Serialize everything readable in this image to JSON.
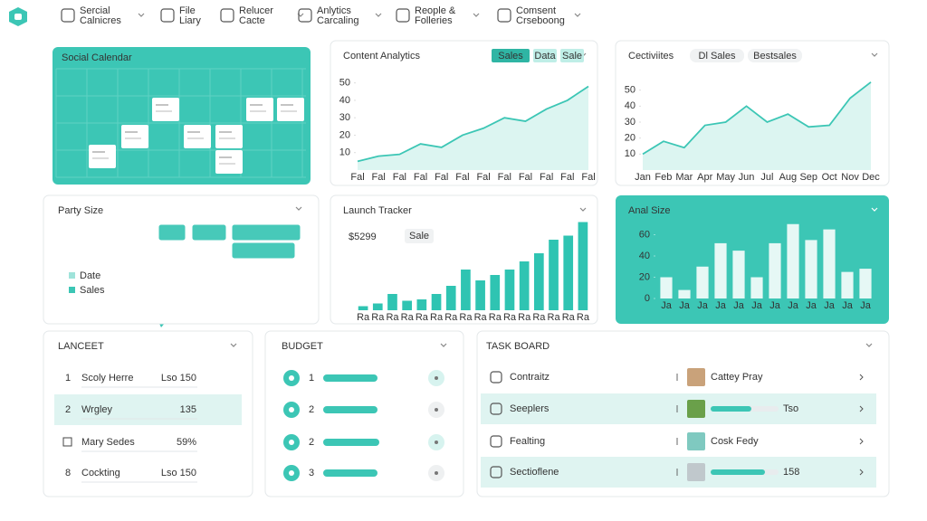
{
  "nav": {
    "items": [
      [
        "Sercial",
        "Calnicres"
      ],
      [
        "File",
        "Liary"
      ],
      [
        "Relucer",
        "Cacte"
      ],
      [
        "Anlytics",
        "Carcaling"
      ],
      [
        "Reople &",
        "Folleries"
      ],
      [
        "Comsent",
        "Crseboong"
      ]
    ]
  },
  "calendar": {
    "title": "Social Calendar"
  },
  "map": {
    "title": "Party Size",
    "legend": [
      "Date",
      "Sales"
    ]
  },
  "chart_data": [
    {
      "type": "area",
      "title": "Content Analytics",
      "buttons": [
        "Sales",
        "Data",
        "Sale"
      ],
      "color": "#3cc6b5",
      "categories": [
        "Fal",
        "Fal",
        "Fal",
        "Fal",
        "Fal",
        "Fal",
        "Fal",
        "Fal",
        "Fal",
        "Fal",
        "Fal",
        "Fal"
      ],
      "values": [
        5,
        8,
        9,
        15,
        13,
        20,
        24,
        30,
        28,
        35,
        40,
        48
      ],
      "ylim": [
        0,
        55
      ],
      "yticks": [
        10,
        20,
        30,
        40,
        50
      ]
    },
    {
      "type": "area",
      "title": "Cectiviites",
      "buttons": [
        "Dl Sales",
        "Bestsales"
      ],
      "color": "#3cc6b5",
      "categories": [
        "Jan",
        "Feb",
        "Mar",
        "Apr",
        "May",
        "Jun",
        "Jul",
        "Aug",
        "Sep",
        "Oct",
        "Nov",
        "Dec"
      ],
      "values": [
        10,
        18,
        14,
        28,
        30,
        40,
        30,
        35,
        27,
        28,
        45,
        55
      ],
      "ylim": [
        0,
        60
      ],
      "yticks": [
        10,
        20,
        30,
        40,
        50
      ]
    },
    {
      "type": "bar",
      "title": "Launch Tracker",
      "headline": "$5299",
      "badge": "Sale",
      "color": "#2fc4b2",
      "categories": [
        "Ra",
        "Ra",
        "Ra",
        "Ra",
        "Ra",
        "Ra",
        "Ra",
        "Ra",
        "Ra",
        "Ra",
        "Ra",
        "Ra",
        "Ra",
        "Ra",
        "Ra",
        "Ra"
      ],
      "values": [
        3,
        5,
        12,
        7,
        8,
        12,
        18,
        30,
        22,
        26,
        30,
        36,
        42,
        52,
        55,
        65
      ],
      "ylim": [
        0,
        70
      ]
    },
    {
      "type": "bar",
      "title": "Anal Size",
      "filled": true,
      "color": "#e6f8f5",
      "categories": [
        "Ja",
        "Ja",
        "Ja",
        "Ja",
        "Ja",
        "Ja",
        "Ja",
        "Ja",
        "Ja",
        "Ja",
        "Ja",
        "Ja"
      ],
      "values": [
        20,
        8,
        30,
        52,
        45,
        20,
        52,
        70,
        55,
        65,
        25,
        28
      ],
      "ylim": [
        0,
        80
      ],
      "yticks": [
        0,
        20,
        40,
        60
      ]
    }
  ],
  "lanceet": {
    "title": "LANCEET",
    "rows": [
      {
        "num": "1",
        "name": "Scoly Herre",
        "value": "Lso 150"
      },
      {
        "num": "2",
        "name": "Wrgley",
        "value": "135"
      },
      {
        "name": "Mary Sedes",
        "value": "59%"
      },
      {
        "num": "8",
        "name": "Cockting",
        "value": "Lso 150"
      }
    ]
  },
  "budget": {
    "title": "BUDGET",
    "xlim": [
      0,
      100
    ],
    "rows": [
      {
        "num": "1",
        "value": 60
      },
      {
        "num": "2",
        "value": 60
      },
      {
        "num": "2",
        "value": 62
      },
      {
        "num": "3",
        "value": 60
      }
    ]
  },
  "task_board": {
    "title": "TASK BOARD",
    "xlim": [
      0,
      100
    ],
    "rows": [
      {
        "name": "Contraitz",
        "person": "Cattey Pray"
      },
      {
        "name": "Seeplers",
        "progress": 60,
        "label": "Tso"
      },
      {
        "name": "Fealting",
        "person": "Cosk Fedy"
      },
      {
        "name": "Sectioflene",
        "progress": 80,
        "label": "158"
      }
    ]
  }
}
